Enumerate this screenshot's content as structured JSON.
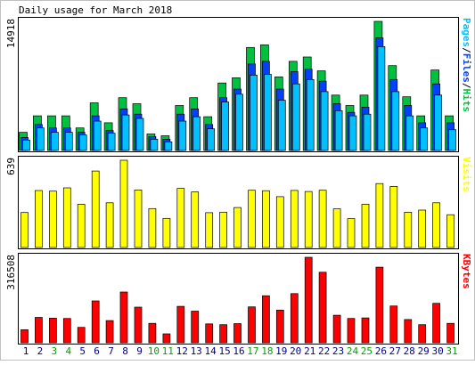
{
  "chart_data": {
    "type": "bar",
    "title": "Daily usage for March 2018",
    "categories": [
      "1",
      "2",
      "3",
      "4",
      "5",
      "6",
      "7",
      "8",
      "9",
      "10",
      "11",
      "12",
      "13",
      "14",
      "15",
      "16",
      "17",
      "18",
      "19",
      "20",
      "21",
      "22",
      "23",
      "24",
      "25",
      "26",
      "27",
      "28",
      "29",
      "30",
      "31"
    ],
    "weekend_days": [
      "3",
      "4",
      "10",
      "11",
      "17",
      "18",
      "24",
      "25",
      "31"
    ],
    "colors": {
      "hits": "#00c040",
      "files": "#0040ff",
      "pages": "#00c0ff",
      "visits": "#ffff00",
      "kbytes": "#ff0000",
      "weekend_label": "#00a000",
      "weekday_label": "#000080",
      "outline": "#000000",
      "frame": "#c0c0c0"
    },
    "panels": [
      {
        "id": "usage",
        "ymax": 14918,
        "ymax_label": "14918",
        "legend": [
          {
            "text": "Pages",
            "color": "#00c0ff"
          },
          {
            "text": "/",
            "color": "#000000"
          },
          {
            "text": "Files",
            "color": "#0040ff"
          },
          {
            "text": "/",
            "color": "#000000"
          },
          {
            "text": "Hits",
            "color": "#00c040"
          }
        ],
        "series": [
          {
            "name": "Hits",
            "values": [
              2100,
              4000,
              4000,
              4000,
              2600,
              5500,
              3200,
              6100,
              5400,
              1900,
              1700,
              5200,
              6100,
              3900,
              7800,
              8400,
              11900,
              12200,
              8500,
              10300,
              10800,
              9200,
              6400,
              5200,
              6400,
              14918,
              9800,
              6200,
              4000,
              9300,
              4000
            ]
          },
          {
            "name": "Files",
            "values": [
              1500,
              3000,
              2600,
              2600,
              2100,
              4000,
              2300,
              4800,
              4200,
              1600,
              1300,
              4200,
              4800,
              3000,
              6100,
              7100,
              10000,
              10300,
              7100,
              9100,
              9400,
              8000,
              5400,
              4400,
              5000,
              13000,
              8200,
              5200,
              3200,
              7700,
              3200
            ]
          },
          {
            "name": "Pages",
            "values": [
              1200,
              2600,
              2100,
              2100,
              1800,
              3400,
              2000,
              4100,
              3700,
              1300,
              1000,
              3400,
              3900,
              2500,
              5600,
              6500,
              8700,
              8800,
              5800,
              7700,
              8200,
              6800,
              4600,
              4000,
              4200,
              12000,
              6800,
              4000,
              2600,
              6400,
              2400
            ]
          }
        ]
      },
      {
        "id": "visits",
        "ymax": 639,
        "ymax_label": "639",
        "legend": [
          {
            "text": "Visits",
            "color": "#ffff00"
          }
        ],
        "series": [
          {
            "name": "Visits",
            "values": [
              256,
              417,
              413,
              437,
              316,
              560,
              327,
              639,
              421,
              285,
              213,
              433,
              407,
              255,
              259,
              293,
              419,
              416,
              372,
              418,
              410,
              419,
              283,
              211,
              316,
              468,
              447,
              258,
              274,
              327,
              240
            ]
          }
        ]
      },
      {
        "id": "kbytes",
        "ymax": 316508,
        "ymax_label": "316508",
        "legend": [
          {
            "text": "KBytes",
            "color": "#ff0000"
          }
        ],
        "series": [
          {
            "name": "KBytes",
            "values": [
              48000,
              94000,
              91000,
              90000,
              57000,
              155000,
              82000,
              188000,
              132000,
              72000,
              33000,
              135000,
              117000,
              70000,
              67000,
              71000,
              133000,
              174000,
              121000,
              182000,
              316508,
              261000,
              102000,
              90000,
              92000,
              280000,
              136000,
              86000,
              67000,
              146000,
              72000
            ]
          }
        ]
      }
    ]
  }
}
